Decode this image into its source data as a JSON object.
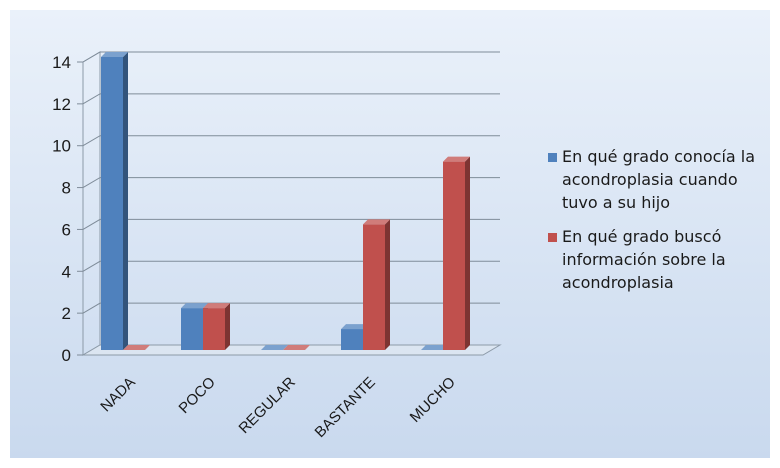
{
  "chart_data": {
    "type": "bar",
    "categories": [
      "NADA",
      "POCO",
      "REGULAR",
      "BASTANTE",
      "MUCHO"
    ],
    "series": [
      {
        "name": "En qué grado conocía la acondroplasia cuando tuvo a su hijo",
        "legend_lines": [
          "En qué grado conocía la",
          "acondroplasia cuando",
          "tuvo a su hijo"
        ],
        "values": [
          14,
          2,
          0,
          1,
          0
        ],
        "color": "#4f81bd"
      },
      {
        "name": "En qué grado buscó información sobre la acondroplasia",
        "legend_lines": [
          "En qué grado buscó",
          "información sobre la",
          "acondroplasia"
        ],
        "values": [
          0,
          2,
          0,
          6,
          9
        ],
        "color": "#c0504d"
      }
    ],
    "yticks": [
      "0",
      "2",
      "4",
      "6",
      "8",
      "10",
      "12",
      "14"
    ],
    "ylim": [
      0,
      14
    ],
    "grid": true,
    "legend_position": "right",
    "style": "3d-clustered-column",
    "background": "#d6e3f3"
  }
}
